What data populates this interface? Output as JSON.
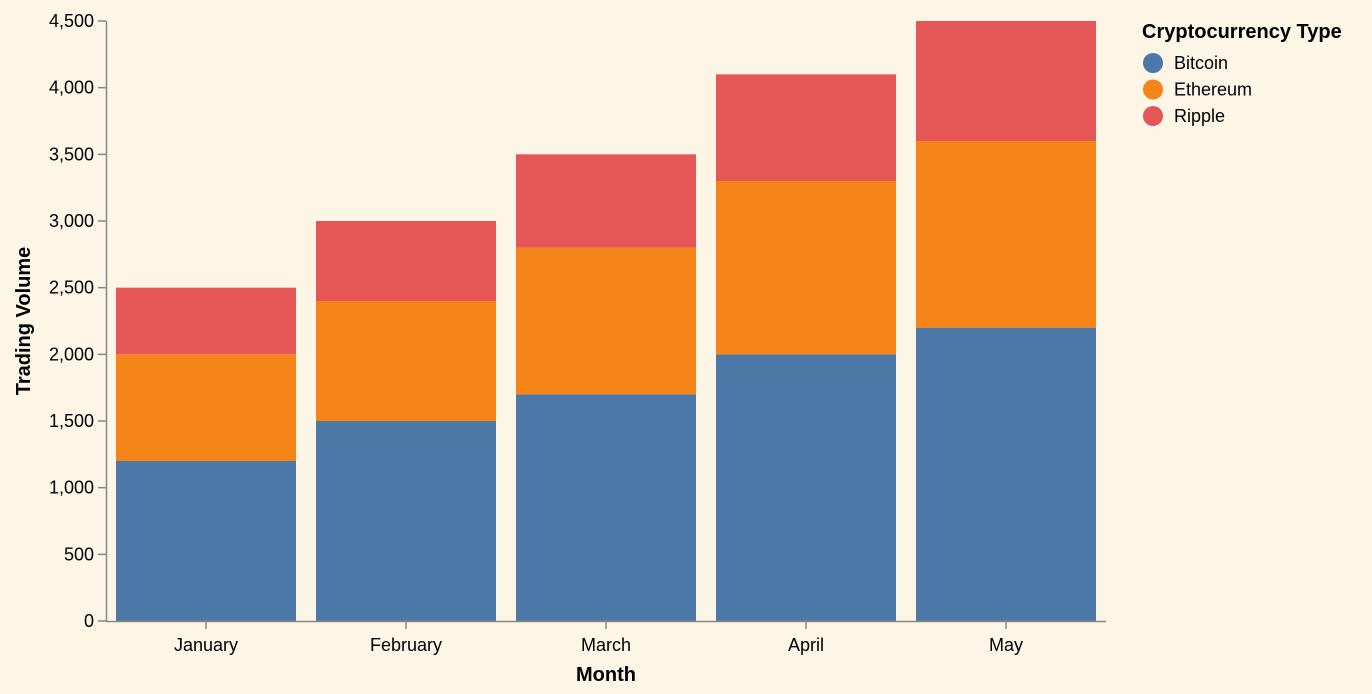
{
  "chart_data": {
    "type": "bar",
    "stacked": true,
    "categories": [
      "January",
      "February",
      "March",
      "April",
      "May"
    ],
    "series": [
      {
        "name": "Bitcoin",
        "color": "#4c78a8",
        "values": [
          1200,
          1500,
          1700,
          2000,
          2200
        ]
      },
      {
        "name": "Ethereum",
        "color": "#f58518",
        "values": [
          800,
          900,
          1100,
          1300,
          1400
        ]
      },
      {
        "name": "Ripple",
        "color": "#e45756",
        "values": [
          500,
          600,
          700,
          800,
          900
        ]
      }
    ],
    "xlabel": "Month",
    "ylabel": "Trading Volume",
    "ylim": [
      0,
      4500
    ],
    "yticks": [
      0,
      500,
      1000,
      1500,
      2000,
      2500,
      3000,
      3500,
      4000,
      4500
    ],
    "ytick_labels": [
      "0",
      "500",
      "1,000",
      "1,500",
      "2,000",
      "2,500",
      "3,000",
      "3,500",
      "4,000",
      "4,500"
    ],
    "grid": false,
    "legend": {
      "title": "Cryptocurrency Type",
      "placement": "top-right"
    }
  }
}
